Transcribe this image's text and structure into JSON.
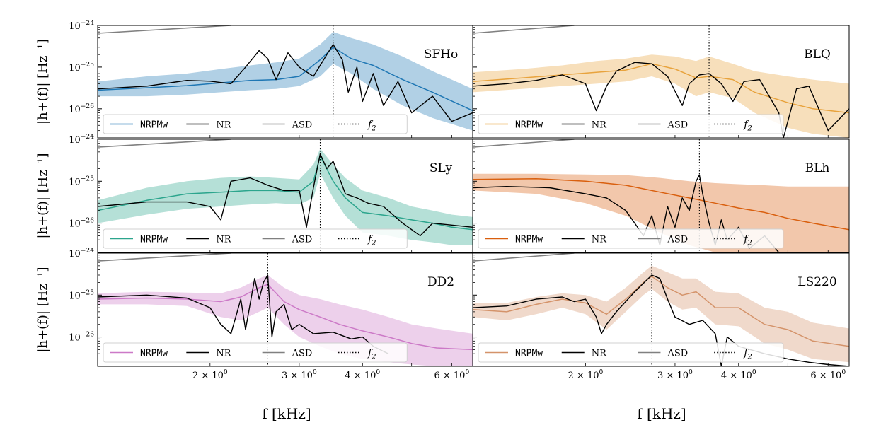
{
  "figure": {
    "xlabel": "f [kHz]",
    "ylabel": "|h+(f)| [Hz⁻¹]"
  },
  "colors": {
    "nr": "#000000",
    "asd": "#808080",
    "f2": "#000000"
  },
  "legend_labels": {
    "model": "NRPMw",
    "nr": "NR",
    "asd": "ASD",
    "f2": "f2"
  },
  "chart_data": [
    {
      "type": "line",
      "panel": "SFHo",
      "eos_label": "SFHo",
      "color": "#1f77b4",
      "xscale": "log",
      "yscale": "log",
      "xlim": [
        1.2,
        6.6
      ],
      "ylim": [
        2e-27,
        1e-24
      ],
      "xticks": [],
      "ytick_labels": [
        "10^-24",
        "10^-25",
        "10^-26"
      ],
      "f2": 3.5,
      "legend": "bottom",
      "series": [
        {
          "name": "NRPMw",
          "x": [
            1.2,
            1.5,
            1.8,
            2.1,
            2.4,
            2.7,
            3.0,
            3.3,
            3.5,
            3.8,
            4.2,
            4.8,
            5.5,
            6.6
          ],
          "y": [
            2.8e-26,
            3.2e-26,
            3.6e-26,
            4.2e-26,
            4.8e-26,
            5e-26,
            6e-26,
            1.5e-25,
            3e-25,
            1.6e-25,
            1.1e-25,
            5e-26,
            2.5e-26,
            9e-27
          ]
        },
        {
          "name": "NR",
          "x": [
            1.2,
            1.5,
            1.8,
            2.0,
            2.2,
            2.35,
            2.5,
            2.6,
            2.7,
            2.85,
            3.0,
            3.2,
            3.4,
            3.5,
            3.65,
            3.75,
            3.9,
            4.0,
            4.2,
            4.4,
            4.7,
            5.0,
            5.5,
            6.0,
            6.6
          ],
          "y": [
            3e-26,
            3.5e-26,
            4.8e-26,
            4.6e-26,
            4e-26,
            1e-25,
            2.5e-25,
            1.6e-25,
            5e-26,
            2.2e-25,
            1e-25,
            6e-26,
            2e-25,
            3.5e-25,
            1.5e-25,
            2.5e-26,
            1e-25,
            1.5e-26,
            7e-26,
            1.2e-26,
            4.5e-26,
            8e-27,
            2e-26,
            5e-27,
            8e-27
          ]
        }
      ],
      "band": {
        "x": [
          1.2,
          1.5,
          1.8,
          2.1,
          2.4,
          2.7,
          3.0,
          3.3,
          3.5,
          3.8,
          4.2,
          4.8,
          5.5,
          6.6
        ],
        "lower": [
          2e-26,
          2e-26,
          2.2e-26,
          2.5e-26,
          2.8e-26,
          3e-26,
          3.5e-26,
          6e-26,
          1.2e-25,
          7e-26,
          3e-26,
          1.2e-26,
          6e-27,
          3e-27
        ],
        "upper": [
          4.5e-26,
          6e-26,
          7e-26,
          9e-26,
          1.1e-25,
          1.3e-25,
          1.6e-25,
          3.5e-25,
          7e-25,
          5e-25,
          3.5e-25,
          1.8e-25,
          8e-26,
          3e-26
        ]
      },
      "asd": {
        "x": [
          1.2,
          2.2
        ],
        "y": [
          6.5e-25,
          1e-24
        ]
      }
    },
    {
      "type": "line",
      "panel": "BLQ",
      "eos_label": "BLQ",
      "color": "#e8a33d",
      "xscale": "log",
      "yscale": "log",
      "xlim": [
        1.2,
        6.6
      ],
      "ylim": [
        2e-27,
        1e-24
      ],
      "xticks": [],
      "ytick_labels": [],
      "f2": 3.5,
      "legend": "bottom",
      "series": [
        {
          "name": "NRPMw",
          "x": [
            1.2,
            1.5,
            1.8,
            2.1,
            2.4,
            2.7,
            3.0,
            3.3,
            3.5,
            3.9,
            4.3,
            5.0,
            5.6,
            6.6
          ],
          "y": [
            4.5e-26,
            5.5e-26,
            6.5e-26,
            7.5e-26,
            8.5e-26,
            1.2e-25,
            9e-26,
            5.5e-26,
            6e-26,
            5e-26,
            2.5e-26,
            1.4e-26,
            1e-26,
            8e-27
          ]
        },
        {
          "name": "NR",
          "x": [
            1.2,
            1.4,
            1.6,
            1.8,
            2.0,
            2.1,
            2.2,
            2.3,
            2.5,
            2.7,
            2.9,
            3.1,
            3.2,
            3.35,
            3.5,
            3.7,
            3.9,
            4.1,
            4.4,
            4.8,
            4.9,
            5.2,
            5.5,
            6.0,
            6.6
          ],
          "y": [
            3.5e-26,
            4e-26,
            4.8e-26,
            6.5e-26,
            4e-26,
            9e-27,
            3.5e-26,
            8e-26,
            1.3e-25,
            1.2e-25,
            6e-26,
            1.2e-26,
            4e-26,
            6.5e-26,
            7e-26,
            4e-26,
            1.5e-26,
            4.5e-26,
            5e-26,
            8e-27,
            2e-27,
            3e-26,
            3.5e-26,
            3e-27,
            1e-26
          ]
        }
      ],
      "band": {
        "x": [
          1.2,
          1.5,
          1.8,
          2.1,
          2.4,
          2.7,
          3.0,
          3.3,
          3.5,
          3.9,
          4.3,
          5.0,
          5.6,
          6.6
        ],
        "lower": [
          2.5e-26,
          3e-26,
          3.5e-26,
          4e-26,
          4.5e-26,
          6e-26,
          4e-26,
          2e-26,
          2.5e-26,
          1.8e-26,
          8e-27,
          3.5e-27,
          2.5e-27,
          2e-27
        ],
        "upper": [
          7.5e-26,
          9e-26,
          1.1e-25,
          1.4e-25,
          1.6e-25,
          2e-25,
          1.8e-25,
          1.4e-25,
          1.8e-25,
          1.2e-25,
          8e-26,
          6e-26,
          5e-26,
          4e-26
        ]
      },
      "asd": {
        "x": [
          1.2,
          1.9
        ],
        "y": [
          6.5e-25,
          1e-24
        ]
      }
    },
    {
      "type": "line",
      "panel": "SLy",
      "eos_label": "SLy",
      "color": "#2ca58d",
      "xscale": "log",
      "yscale": "log",
      "xlim": [
        1.2,
        6.6
      ],
      "ylim": [
        2e-27,
        1e-24
      ],
      "xticks": [],
      "ytick_labels": [
        "10^-24",
        "10^-25",
        "10^-26"
      ],
      "f2": 3.3,
      "legend": "bottom",
      "series": [
        {
          "name": "NRPMw",
          "x": [
            1.2,
            1.5,
            1.8,
            2.1,
            2.4,
            2.7,
            3.0,
            3.2,
            3.3,
            3.5,
            3.7,
            4.0,
            4.5,
            5.0,
            5.5,
            6.0,
            6.6
          ],
          "y": [
            2e-26,
            3.5e-26,
            5e-26,
            5.5e-26,
            6e-26,
            6e-26,
            5.5e-26,
            1e-25,
            4e-25,
            1e-25,
            4e-26,
            1.8e-26,
            1.5e-26,
            1.2e-26,
            1e-26,
            8e-27,
            7e-27
          ]
        },
        {
          "name": "NR",
          "x": [
            1.2,
            1.5,
            1.8,
            2.0,
            2.1,
            2.2,
            2.4,
            2.6,
            2.8,
            3.0,
            3.1,
            3.2,
            3.3,
            3.4,
            3.5,
            3.7,
            3.9,
            4.1,
            4.4,
            4.8,
            5.2,
            5.5,
            6.0,
            6.6
          ],
          "y": [
            2.5e-26,
            3.2e-26,
            3.2e-26,
            2.5e-26,
            1.2e-26,
            1e-25,
            1.2e-25,
            8e-26,
            6e-26,
            6e-26,
            8e-27,
            7e-26,
            4.5e-25,
            2e-25,
            3e-25,
            5e-26,
            4e-26,
            3e-26,
            2.5e-26,
            1e-26,
            5e-27,
            1e-26,
            9e-27,
            8e-27
          ]
        }
      ],
      "band": {
        "x": [
          1.2,
          1.5,
          1.8,
          2.1,
          2.4,
          2.7,
          3.0,
          3.2,
          3.3,
          3.5,
          3.7,
          4.0,
          4.5,
          5.0,
          5.5,
          6.0,
          6.6
        ],
        "lower": [
          1e-26,
          1.6e-26,
          2.2e-26,
          2.5e-26,
          2.8e-26,
          3e-26,
          2.8e-26,
          4e-26,
          1.5e-25,
          4e-26,
          1.5e-26,
          6e-27,
          5e-27,
          4e-27,
          3.5e-27,
          3e-27,
          3e-27
        ],
        "upper": [
          3.5e-26,
          7e-26,
          1e-25,
          1.2e-25,
          1.3e-25,
          1.2e-25,
          1.1e-25,
          2.5e-25,
          6e-25,
          2.5e-25,
          1.2e-25,
          6e-26,
          4e-26,
          2.5e-26,
          2e-26,
          1.6e-26,
          1.4e-26
        ]
      },
      "asd": {
        "x": [
          1.2,
          2.2
        ],
        "y": [
          6.5e-25,
          1e-24
        ]
      }
    },
    {
      "type": "line",
      "panel": "BLh",
      "eos_label": "BLh",
      "color": "#d95f0e",
      "xscale": "log",
      "yscale": "log",
      "xlim": [
        1.2,
        6.6
      ],
      "ylim": [
        2e-27,
        1e-24
      ],
      "xticks": [],
      "ytick_labels": [],
      "f2": 3.35,
      "legend": "bottom",
      "series": [
        {
          "name": "NRPMw",
          "x": [
            1.2,
            1.6,
            2.0,
            2.4,
            2.8,
            3.2,
            3.6,
            4.0,
            4.5,
            5.0,
            5.6,
            6.6
          ],
          "y": [
            1.1e-25,
            1.15e-25,
            1e-25,
            8e-26,
            5.5e-26,
            4e-26,
            3e-26,
            2.3e-26,
            1.8e-26,
            1.3e-26,
            1e-26,
            7e-27
          ]
        },
        {
          "name": "NR",
          "x": [
            1.2,
            1.4,
            1.7,
            2.0,
            2.2,
            2.4,
            2.5,
            2.6,
            2.7,
            2.8,
            2.9,
            3.0,
            3.1,
            3.2,
            3.3,
            3.35,
            3.4,
            3.5,
            3.6,
            3.7,
            3.8,
            4.0,
            4.2,
            4.5,
            4.8
          ],
          "y": [
            7e-26,
            7.5e-26,
            7e-26,
            5e-26,
            4e-26,
            2e-26,
            1e-26,
            5e-27,
            1.5e-26,
            3e-27,
            2.5e-26,
            8e-27,
            4e-26,
            2e-26,
            1e-25,
            1.4e-25,
            5e-26,
            1e-26,
            3e-27,
            1.2e-26,
            4e-27,
            8e-27,
            2.5e-27,
            5e-27,
            2e-27
          ]
        }
      ],
      "band": {
        "x": [
          1.2,
          1.6,
          2.0,
          2.4,
          2.8,
          3.2,
          3.6,
          4.0,
          4.5,
          5.0,
          5.6,
          6.6
        ],
        "lower": [
          6e-26,
          5e-26,
          3e-26,
          1.5e-26,
          6e-27,
          3e-27,
          2e-27,
          2e-27,
          2e-27,
          2e-27,
          2e-27,
          2e-27
        ],
        "upper": [
          1.5e-25,
          1.5e-25,
          1.45e-25,
          1.4e-25,
          1.2e-25,
          1e-25,
          9e-26,
          8.5e-26,
          8e-26,
          7.5e-26,
          7.5e-26,
          7.5e-26
        ]
      },
      "asd": {
        "x": [
          1.2,
          1.9
        ],
        "y": [
          6.5e-25,
          1e-24
        ]
      }
    },
    {
      "type": "line",
      "panel": "DD2",
      "eos_label": "DD2",
      "color": "#cc79c7",
      "xscale": "log",
      "yscale": "log",
      "xlim": [
        1.2,
        6.6
      ],
      "ylim": [
        2e-27,
        1e-24
      ],
      "xticks": [
        "2 × 10^0",
        "3 × 10^0",
        "4 × 10^0",
        "6 × 10^0"
      ],
      "xtick_values": [
        2,
        3,
        4,
        6
      ],
      "ytick_labels": [
        "10^-24",
        "10^-25",
        "10^-26"
      ],
      "f2": 2.6,
      "legend": "bottom",
      "series": [
        {
          "name": "NRPMw",
          "x": [
            1.2,
            1.5,
            1.8,
            2.1,
            2.3,
            2.5,
            2.6,
            2.8,
            3.0,
            3.3,
            3.6,
            4.0,
            4.5,
            5.0,
            5.6,
            6.6
          ],
          "y": [
            8e-26,
            8.5e-26,
            8e-26,
            7e-26,
            9e-26,
            1.5e-25,
            1.8e-25,
            7e-26,
            4.5e-26,
            3e-26,
            2e-26,
            1.4e-26,
            1e-26,
            7e-27,
            5.5e-27,
            5e-27
          ]
        },
        {
          "name": "NR",
          "x": [
            1.2,
            1.5,
            1.8,
            2.0,
            2.1,
            2.2,
            2.3,
            2.35,
            2.45,
            2.5,
            2.55,
            2.6,
            2.65,
            2.7,
            2.8,
            2.9,
            3.0,
            3.2,
            3.5,
            3.8,
            4.0,
            4.2,
            4.5
          ],
          "y": [
            9e-26,
            1e-25,
            8.5e-26,
            5e-26,
            2e-26,
            1.2e-26,
            8e-26,
            1.5e-26,
            2.5e-25,
            8e-26,
            2e-25,
            3e-25,
            1e-26,
            4e-26,
            6e-26,
            1.5e-26,
            2e-26,
            1.2e-26,
            1.3e-26,
            9e-27,
            1e-26,
            6e-27,
            4e-27
          ]
        }
      ],
      "band": {
        "x": [
          1.2,
          1.5,
          1.8,
          2.1,
          2.3,
          2.5,
          2.6,
          2.8,
          3.0,
          3.3,
          3.6,
          4.0,
          4.5,
          5.0,
          5.6,
          6.6
        ],
        "lower": [
          6e-26,
          6e-26,
          5.5e-26,
          3e-26,
          2.5e-26,
          4e-26,
          5e-26,
          2e-26,
          1e-26,
          6e-27,
          4e-27,
          3e-27,
          2.5e-27,
          2.2e-27,
          2e-27,
          2e-27
        ],
        "upper": [
          1.1e-25,
          1.2e-25,
          1.15e-25,
          1.1e-25,
          1.5e-25,
          2.5e-25,
          3e-25,
          1.5e-25,
          1e-25,
          8e-26,
          6e-26,
          4.5e-26,
          3e-26,
          2e-26,
          1.6e-26,
          1.2e-26
        ]
      },
      "asd": {
        "x": [
          1.2,
          2.2
        ],
        "y": [
          6.5e-25,
          1e-24
        ]
      }
    },
    {
      "type": "line",
      "panel": "LS220",
      "eos_label": "LS220",
      "color": "#d4936a",
      "xscale": "log",
      "yscale": "log",
      "xlim": [
        1.2,
        6.6
      ],
      "ylim": [
        2e-27,
        1e-24
      ],
      "xticks": [
        "2 × 10^0",
        "3 × 10^0",
        "4 × 10^0",
        "6 × 10^0"
      ],
      "xtick_values": [
        2,
        3,
        4,
        6
      ],
      "ytick_labels": [],
      "f2": 2.7,
      "legend": "bottom",
      "series": [
        {
          "name": "NRPMw",
          "x": [
            1.2,
            1.4,
            1.6,
            1.8,
            2.0,
            2.2,
            2.4,
            2.6,
            2.7,
            2.9,
            3.1,
            3.3,
            3.6,
            4.0,
            4.5,
            5.0,
            5.6,
            6.6
          ],
          "y": [
            4.5e-26,
            4e-26,
            6e-26,
            8e-26,
            6.5e-26,
            3.5e-26,
            8e-26,
            2e-25,
            2.8e-25,
            1.5e-25,
            1e-25,
            1.2e-25,
            5e-26,
            5e-26,
            2e-26,
            1.5e-26,
            8e-27,
            6e-27
          ]
        },
        {
          "name": "NR",
          "x": [
            1.2,
            1.4,
            1.6,
            1.8,
            1.9,
            2.0,
            2.1,
            2.15,
            2.2,
            2.3,
            2.5,
            2.7,
            2.8,
            2.9,
            3.0,
            3.2,
            3.4,
            3.6,
            3.7,
            3.8,
            4.0,
            4.5,
            5.0,
            5.5,
            6.0,
            6.6
          ],
          "y": [
            5e-26,
            5.5e-26,
            8e-26,
            9e-26,
            7e-26,
            8e-26,
            3e-26,
            1.2e-26,
            2e-26,
            4e-26,
            1.2e-25,
            3e-25,
            2.5e-25,
            8e-26,
            3e-26,
            2e-26,
            2.5e-26,
            1.2e-26,
            2e-27,
            1e-26,
            6e-27,
            4e-27,
            3e-27,
            2.5e-27,
            2.2e-27,
            2e-27
          ]
        }
      ],
      "band": {
        "x": [
          1.2,
          1.4,
          1.6,
          1.8,
          2.0,
          2.2,
          2.4,
          2.6,
          2.7,
          2.9,
          3.1,
          3.3,
          3.6,
          4.0,
          4.5,
          5.0,
          5.6,
          6.6
        ],
        "lower": [
          3e-26,
          2.5e-26,
          3.5e-26,
          5e-26,
          3.5e-26,
          1.5e-26,
          4e-26,
          1e-25,
          1.4e-25,
          7e-26,
          4.5e-26,
          5e-26,
          2e-26,
          1.8e-26,
          7e-27,
          5e-27,
          3e-27,
          2.5e-27
        ],
        "upper": [
          6.5e-26,
          6.5e-26,
          9e-26,
          1.1e-25,
          1e-25,
          7e-26,
          1.5e-25,
          3.5e-25,
          5e-25,
          3.5e-25,
          2.5e-25,
          2.5e-25,
          1.2e-25,
          1.1e-25,
          5e-26,
          4e-26,
          2.2e-26,
          1.6e-26
        ]
      },
      "asd": {
        "x": [
          1.2,
          1.9
        ],
        "y": [
          6.5e-25,
          1e-24
        ]
      }
    }
  ]
}
